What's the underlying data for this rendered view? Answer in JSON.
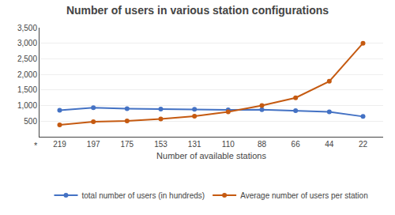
{
  "chart_data": {
    "type": "line",
    "title": "Number of users in various station configurations",
    "xlabel": "Number of available stations",
    "categories": [
      "219",
      "197",
      "175",
      "153",
      "131",
      "110",
      "88",
      "66",
      "44",
      "22"
    ],
    "series": [
      {
        "name": "total number of users (in hundreds)",
        "color": "#4472C4",
        "values": [
          850,
          930,
          900,
          890,
          880,
          860,
          870,
          840,
          800,
          650
        ]
      },
      {
        "name": "Average number of users per station",
        "color": "#C55A11",
        "values": [
          380,
          480,
          510,
          570,
          660,
          800,
          1000,
          1250,
          1780,
          3000
        ]
      }
    ],
    "ylim": [
      0,
      3500
    ],
    "yticks": [
      500,
      {
        "value": 1000,
        "label": "1,000"
      },
      {
        "value": 1500,
        "label": "1,500"
      },
      {
        "value": 2000,
        "label": "2,000"
      },
      {
        "value": 2500,
        "label": "2,500"
      },
      {
        "value": 3000,
        "label": "3,000"
      },
      {
        "value": 3500,
        "label": "3,500"
      }
    ],
    "grid": true,
    "legend": "bottom",
    "marker": "circle",
    "annotations": [
      "*"
    ]
  }
}
